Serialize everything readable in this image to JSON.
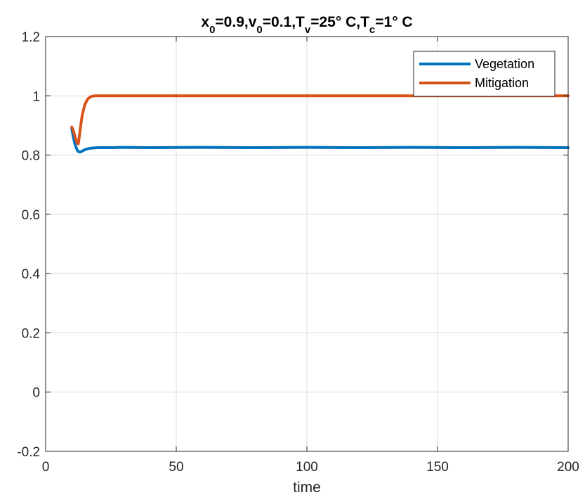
{
  "chart_data": {
    "type": "line",
    "title_parts": [
      {
        "text": "x",
        "sub": false
      },
      {
        "text": "0",
        "sub": true
      },
      {
        "text": "=0.9,v",
        "sub": false
      },
      {
        "text": "0",
        "sub": true
      },
      {
        "text": "=0.1,T",
        "sub": false
      },
      {
        "text": "v",
        "sub": true
      },
      {
        "text": "=25° C,T",
        "sub": false
      },
      {
        "text": "c",
        "sub": true
      },
      {
        "text": "=1° C",
        "sub": false
      }
    ],
    "xlabel": "time",
    "ylabel": "",
    "xlim": [
      0,
      200
    ],
    "ylim": [
      -0.2,
      1.2
    ],
    "xticks": [
      0,
      50,
      100,
      150,
      200
    ],
    "xtick_labels": [
      "0",
      "50",
      "100",
      "150",
      "200"
    ],
    "yticks": [
      -0.2,
      0,
      0.2,
      0.4,
      0.6,
      0.8,
      1,
      1.2
    ],
    "ytick_labels": [
      "-0.2",
      "0",
      "0.2",
      "0.4",
      "0.6",
      "0.8",
      "1",
      "1.2"
    ],
    "grid": true,
    "legend_position": "top-right",
    "series": [
      {
        "name": "Vegetation",
        "color": "#0072BD",
        "x": [
          10,
          10.5,
          11,
          11.5,
          12,
          12.5,
          13,
          13.5,
          14,
          15,
          16,
          17,
          18,
          20,
          25,
          30,
          40,
          60,
          80,
          100,
          120,
          140,
          160,
          180,
          200
        ],
        "y": [
          0.89,
          0.865,
          0.845,
          0.83,
          0.818,
          0.812,
          0.81,
          0.811,
          0.814,
          0.818,
          0.821,
          0.823,
          0.824,
          0.825,
          0.825,
          0.826,
          0.825,
          0.826,
          0.825,
          0.826,
          0.825,
          0.826,
          0.825,
          0.826,
          0.825
        ]
      },
      {
        "name": "Mitigation",
        "color": "#D95319",
        "x": [
          10,
          10.5,
          11,
          11.5,
          12,
          12.5,
          13,
          13.5,
          14,
          15,
          16,
          17,
          18,
          19,
          20,
          25,
          30,
          50,
          100,
          150,
          200
        ],
        "y": [
          0.895,
          0.885,
          0.87,
          0.855,
          0.842,
          0.838,
          0.87,
          0.905,
          0.935,
          0.97,
          0.988,
          0.996,
          0.999,
          1.0,
          1.0,
          1.0,
          1.0,
          1.0,
          1.0,
          1.0,
          1.0
        ]
      }
    ]
  }
}
